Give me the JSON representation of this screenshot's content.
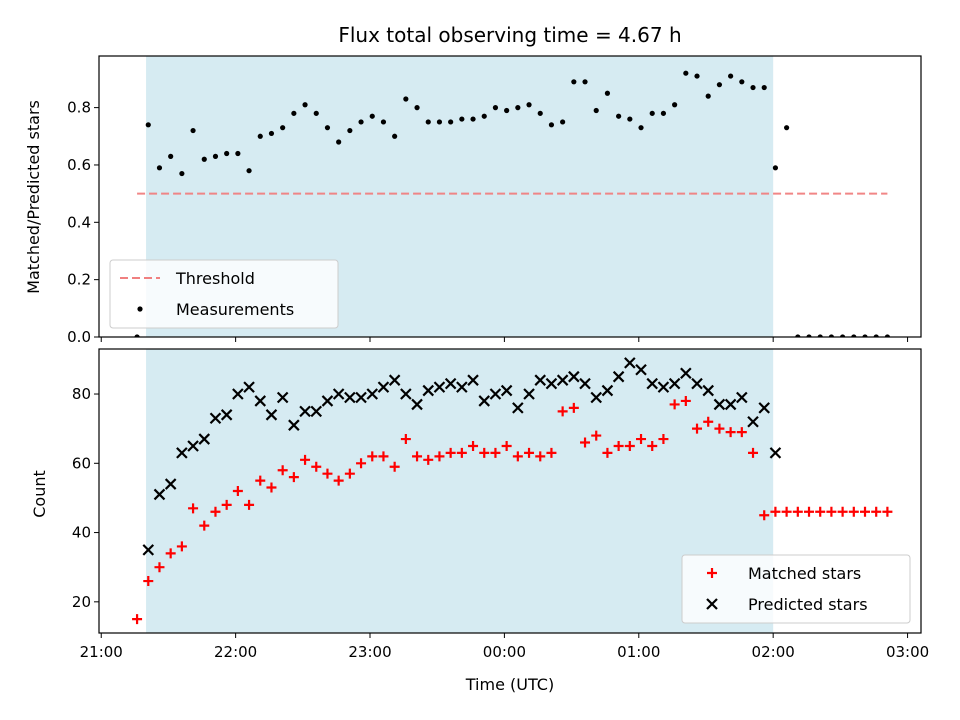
{
  "chart_data": [
    {
      "type": "scatter",
      "title": "Flux total observing time = 4.67 h",
      "xlabel": "",
      "ylabel": "Matched/Predicted stars",
      "xlim": [
        "20:59",
        "03:06"
      ],
      "ylim": [
        0,
        0.98
      ],
      "y_ticks": [
        0.0,
        0.2,
        0.4,
        0.6,
        0.8
      ],
      "y_tick_labels": [
        "0.0",
        "0.2",
        "0.4",
        "0.6",
        "0.8"
      ],
      "shaded_interval": [
        "21:20",
        "02:00"
      ],
      "legend": {
        "position": "lower-left",
        "entries": [
          "Threshold",
          "Measurements"
        ]
      },
      "series": [
        {
          "name": "Threshold",
          "style": "dashed-line",
          "color": "#f08080",
          "points": [
            [
              "21:16",
              0.5
            ],
            [
              "02:51",
              0.5
            ]
          ]
        },
        {
          "name": "Measurements",
          "style": "dot",
          "color": "#000000",
          "points": [
            [
              "21:16",
              0.0
            ],
            [
              "21:21",
              0.74
            ],
            [
              "21:26",
              0.59
            ],
            [
              "21:31",
              0.63
            ],
            [
              "21:36",
              0.57
            ],
            [
              "21:41",
              0.72
            ],
            [
              "21:46",
              0.62
            ],
            [
              "21:51",
              0.63
            ],
            [
              "21:56",
              0.64
            ],
            [
              "22:01",
              0.64
            ],
            [
              "22:06",
              0.58
            ],
            [
              "22:11",
              0.7
            ],
            [
              "22:16",
              0.71
            ],
            [
              "22:21",
              0.73
            ],
            [
              "22:26",
              0.78
            ],
            [
              "22:31",
              0.81
            ],
            [
              "22:36",
              0.78
            ],
            [
              "22:41",
              0.73
            ],
            [
              "22:46",
              0.68
            ],
            [
              "22:51",
              0.72
            ],
            [
              "22:56",
              0.75
            ],
            [
              "23:01",
              0.77
            ],
            [
              "23:06",
              0.75
            ],
            [
              "23:11",
              0.7
            ],
            [
              "23:16",
              0.83
            ],
            [
              "23:21",
              0.8
            ],
            [
              "23:26",
              0.75
            ],
            [
              "23:31",
              0.75
            ],
            [
              "23:36",
              0.75
            ],
            [
              "23:41",
              0.76
            ],
            [
              "23:46",
              0.76
            ],
            [
              "23:51",
              0.77
            ],
            [
              "23:56",
              0.8
            ],
            [
              "00:01",
              0.79
            ],
            [
              "00:06",
              0.8
            ],
            [
              "00:11",
              0.81
            ],
            [
              "00:16",
              0.78
            ],
            [
              "00:21",
              0.74
            ],
            [
              "00:26",
              0.75
            ],
            [
              "00:31",
              0.89
            ],
            [
              "00:36",
              0.89
            ],
            [
              "00:41",
              0.79
            ],
            [
              "00:46",
              0.85
            ],
            [
              "00:51",
              0.77
            ],
            [
              "00:56",
              0.76
            ],
            [
              "01:01",
              0.73
            ],
            [
              "01:06",
              0.78
            ],
            [
              "01:11",
              0.78
            ],
            [
              "01:16",
              0.81
            ],
            [
              "01:21",
              0.92
            ],
            [
              "01:26",
              0.91
            ],
            [
              "01:31",
              0.84
            ],
            [
              "01:36",
              0.88
            ],
            [
              "01:41",
              0.91
            ],
            [
              "01:46",
              0.89
            ],
            [
              "01:51",
              0.87
            ],
            [
              "01:56",
              0.87
            ],
            [
              "02:01",
              0.59
            ],
            [
              "02:06",
              0.73
            ],
            [
              "02:11",
              0.0
            ],
            [
              "02:16",
              0.0
            ],
            [
              "02:21",
              0.0
            ],
            [
              "02:26",
              0.0
            ],
            [
              "02:31",
              0.0
            ],
            [
              "02:36",
              0.0
            ],
            [
              "02:41",
              0.0
            ],
            [
              "02:46",
              0.0
            ],
            [
              "02:51",
              0.0
            ]
          ]
        }
      ]
    },
    {
      "type": "scatter",
      "title": "",
      "xlabel": "Time (UTC)",
      "ylabel": "Count",
      "xlim": [
        "20:59",
        "03:06"
      ],
      "ylim": [
        11,
        93
      ],
      "x_ticks": [
        "21:00",
        "22:00",
        "23:00",
        "00:00",
        "01:00",
        "02:00",
        "03:00"
      ],
      "y_ticks": [
        20,
        40,
        60,
        80
      ],
      "shaded_interval": [
        "21:20",
        "02:00"
      ],
      "legend": {
        "position": "lower-right",
        "entries": [
          "Matched stars",
          "Predicted stars"
        ]
      },
      "series": [
        {
          "name": "Matched stars",
          "marker": "plus",
          "color": "#ff0000",
          "points": [
            [
              "21:16",
              15
            ],
            [
              "21:21",
              26
            ],
            [
              "21:26",
              30
            ],
            [
              "21:31",
              34
            ],
            [
              "21:36",
              36
            ],
            [
              "21:41",
              47
            ],
            [
              "21:46",
              42
            ],
            [
              "21:51",
              46
            ],
            [
              "21:56",
              48
            ],
            [
              "22:01",
              52
            ],
            [
              "22:06",
              48
            ],
            [
              "22:11",
              55
            ],
            [
              "22:16",
              53
            ],
            [
              "22:21",
              58
            ],
            [
              "22:26",
              56
            ],
            [
              "22:31",
              61
            ],
            [
              "22:36",
              59
            ],
            [
              "22:41",
              57
            ],
            [
              "22:46",
              55
            ],
            [
              "22:51",
              57
            ],
            [
              "22:56",
              60
            ],
            [
              "23:01",
              62
            ],
            [
              "23:06",
              62
            ],
            [
              "23:11",
              59
            ],
            [
              "23:16",
              67
            ],
            [
              "23:21",
              62
            ],
            [
              "23:26",
              61
            ],
            [
              "23:31",
              62
            ],
            [
              "23:36",
              63
            ],
            [
              "23:41",
              63
            ],
            [
              "23:46",
              65
            ],
            [
              "23:51",
              63
            ],
            [
              "23:56",
              63
            ],
            [
              "00:01",
              65
            ],
            [
              "00:06",
              62
            ],
            [
              "00:11",
              63
            ],
            [
              "00:16",
              62
            ],
            [
              "00:21",
              63
            ],
            [
              "00:26",
              75
            ],
            [
              "00:31",
              76
            ],
            [
              "00:36",
              66
            ],
            [
              "00:41",
              68
            ],
            [
              "00:46",
              63
            ],
            [
              "00:51",
              65
            ],
            [
              "00:56",
              65
            ],
            [
              "01:01",
              67
            ],
            [
              "01:06",
              65
            ],
            [
              "01:11",
              67
            ],
            [
              "01:16",
              77
            ],
            [
              "01:21",
              78
            ],
            [
              "01:26",
              70
            ],
            [
              "01:31",
              72
            ],
            [
              "01:36",
              70
            ],
            [
              "01:41",
              69
            ],
            [
              "01:46",
              69
            ],
            [
              "01:51",
              63
            ],
            [
              "01:56",
              45
            ],
            [
              "02:01",
              46
            ],
            [
              "02:06",
              46
            ],
            [
              "02:11",
              46
            ],
            [
              "02:16",
              46
            ],
            [
              "02:21",
              46
            ],
            [
              "02:26",
              46
            ],
            [
              "02:31",
              46
            ],
            [
              "02:36",
              46
            ],
            [
              "02:41",
              46
            ],
            [
              "02:46",
              46
            ],
            [
              "02:51",
              46
            ]
          ]
        },
        {
          "name": "Predicted stars",
          "marker": "x",
          "color": "#000000",
          "points": [
            [
              "21:21",
              35
            ],
            [
              "21:26",
              51
            ],
            [
              "21:31",
              54
            ],
            [
              "21:36",
              63
            ],
            [
              "21:41",
              65
            ],
            [
              "21:46",
              67
            ],
            [
              "21:51",
              73
            ],
            [
              "21:56",
              74
            ],
            [
              "22:01",
              80
            ],
            [
              "22:06",
              82
            ],
            [
              "22:11",
              78
            ],
            [
              "22:16",
              74
            ],
            [
              "22:21",
              79
            ],
            [
              "22:26",
              71
            ],
            [
              "22:31",
              75
            ],
            [
              "22:36",
              75
            ],
            [
              "22:41",
              78
            ],
            [
              "22:46",
              80
            ],
            [
              "22:51",
              79
            ],
            [
              "22:56",
              79
            ],
            [
              "23:01",
              80
            ],
            [
              "23:06",
              82
            ],
            [
              "23:11",
              84
            ],
            [
              "23:16",
              80
            ],
            [
              "23:21",
              77
            ],
            [
              "23:26",
              81
            ],
            [
              "23:31",
              82
            ],
            [
              "23:36",
              83
            ],
            [
              "23:41",
              82
            ],
            [
              "23:46",
              84
            ],
            [
              "23:51",
              78
            ],
            [
              "23:56",
              80
            ],
            [
              "00:01",
              81
            ],
            [
              "00:06",
              76
            ],
            [
              "00:11",
              80
            ],
            [
              "00:16",
              84
            ],
            [
              "00:21",
              83
            ],
            [
              "00:26",
              84
            ],
            [
              "00:31",
              85
            ],
            [
              "00:36",
              83
            ],
            [
              "00:41",
              79
            ],
            [
              "00:46",
              81
            ],
            [
              "00:51",
              85
            ],
            [
              "00:56",
              89
            ],
            [
              "01:01",
              87
            ],
            [
              "01:06",
              83
            ],
            [
              "01:11",
              82
            ],
            [
              "01:16",
              83
            ],
            [
              "01:21",
              86
            ],
            [
              "01:26",
              83
            ],
            [
              "01:31",
              81
            ],
            [
              "01:36",
              77
            ],
            [
              "01:41",
              77
            ],
            [
              "01:46",
              79
            ],
            [
              "01:51",
              72
            ],
            [
              "01:56",
              76
            ],
            [
              "02:01",
              63
            ]
          ]
        }
      ]
    }
  ]
}
